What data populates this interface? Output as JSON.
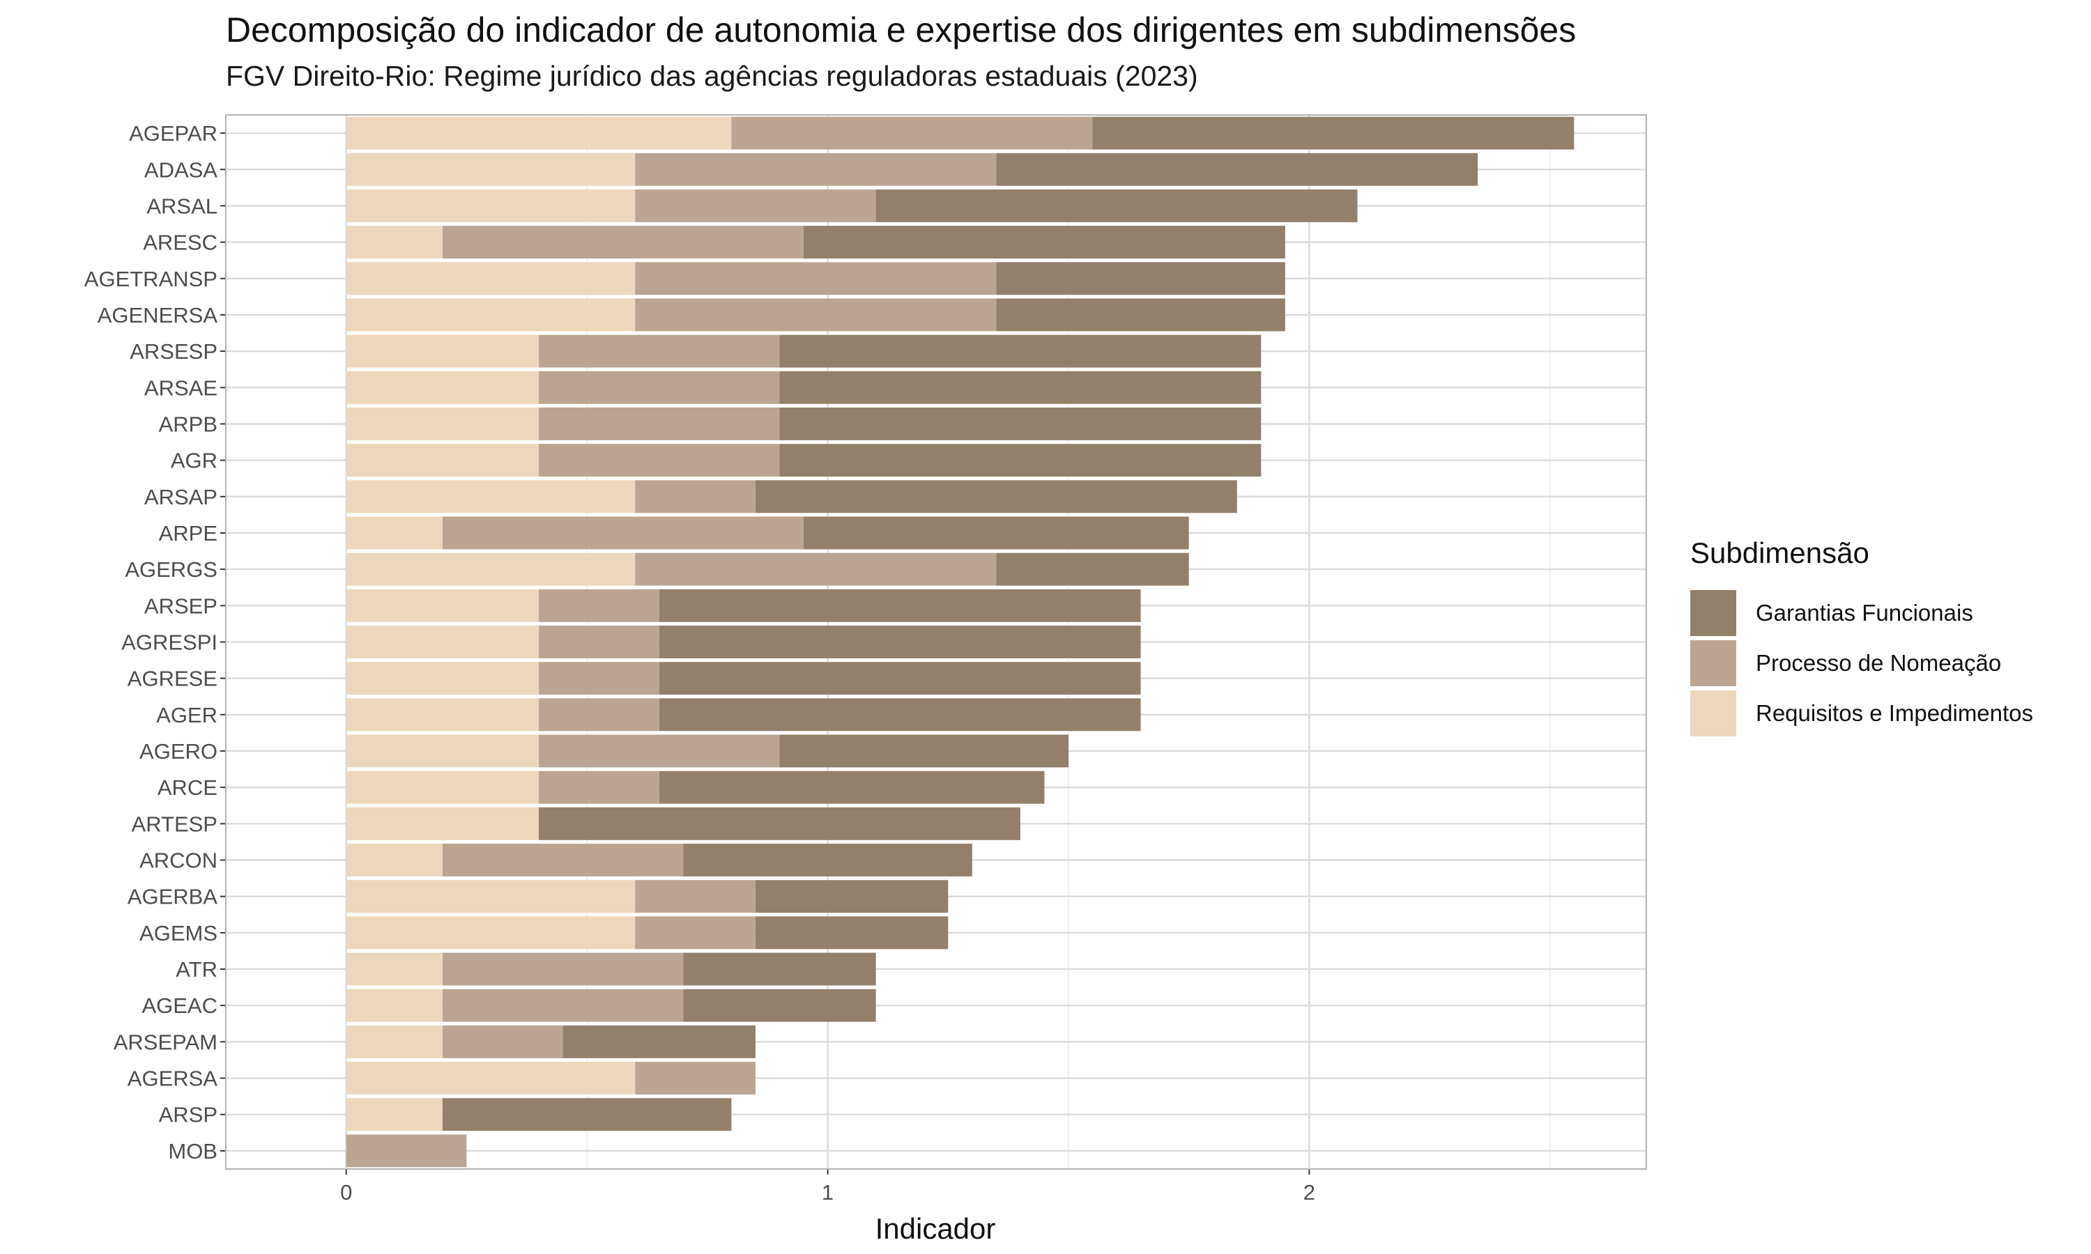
{
  "chart_data": {
    "type": "bar",
    "orientation": "horizontal",
    "stacked": true,
    "title": "Decomposição do indicador de autonomia e expertise dos dirigentes em subdimensões",
    "subtitle": "FGV Direito-Rio: Regime jurídico das agências reguladoras estaduais (2023)",
    "xlabel": "Indicador",
    "ylabel": "",
    "xlim": [
      -0.25,
      2.7
    ],
    "x_ticks": [
      0,
      1,
      2
    ],
    "grid": true,
    "legend_position": "right",
    "legend_title": "Subdimensão",
    "categories": [
      "AGEPAR",
      "ADASA",
      "ARSAL",
      "ARESC",
      "AGETRANSP",
      "AGENERSA",
      "ARSESP",
      "ARSAE",
      "ARPB",
      "AGR",
      "ARSAP",
      "ARPE",
      "AGERGS",
      "ARSEP",
      "AGRESPI",
      "AGRESE",
      "AGER",
      "AGERO",
      "ARCE",
      "ARTESP",
      "ARCON",
      "AGERBA",
      "AGEMS",
      "ATR",
      "AGEAC",
      "ARSEPAM",
      "AGERSA",
      "ARSP",
      "MOB"
    ],
    "series": [
      {
        "name": "Requisitos e Impedimentos",
        "color": "#EDD7BC",
        "values": [
          0.8,
          0.6,
          0.6,
          0.2,
          0.6,
          0.6,
          0.4,
          0.4,
          0.4,
          0.4,
          0.6,
          0.2,
          0.6,
          0.4,
          0.4,
          0.4,
          0.4,
          0.4,
          0.4,
          0.4,
          0.2,
          0.6,
          0.6,
          0.2,
          0.2,
          0.2,
          0.6,
          0.2,
          0
        ]
      },
      {
        "name": "Processo de Nomeação",
        "color": "#BBA592",
        "values": [
          0.75,
          0.75,
          0.5,
          0.75,
          0.75,
          0.75,
          0.5,
          0.5,
          0.5,
          0.5,
          0.25,
          0.75,
          0.75,
          0.25,
          0.25,
          0.25,
          0.25,
          0.5,
          0.25,
          0,
          0.5,
          0.25,
          0.25,
          0.5,
          0.5,
          0.25,
          0.25,
          0,
          0.25
        ]
      },
      {
        "name": "Garantias Funcionais",
        "color": "#93806B",
        "values": [
          1.0,
          1.0,
          1.0,
          1.0,
          0.6,
          0.6,
          1.0,
          1.0,
          1.0,
          1.0,
          1.0,
          0.8,
          0.4,
          1.0,
          1.0,
          1.0,
          1.0,
          0.6,
          0.8,
          1.0,
          0.6,
          0.4,
          0.4,
          0.4,
          0.4,
          0.4,
          0,
          0.6,
          0
        ]
      }
    ]
  },
  "legend_items": [
    {
      "label": "Garantias Funcionais",
      "color": "#93806B"
    },
    {
      "label": "Processo de Nomeação",
      "color": "#BBA592"
    },
    {
      "label": "Requisitos e Impedimentos",
      "color": "#EDD7BC"
    }
  ]
}
